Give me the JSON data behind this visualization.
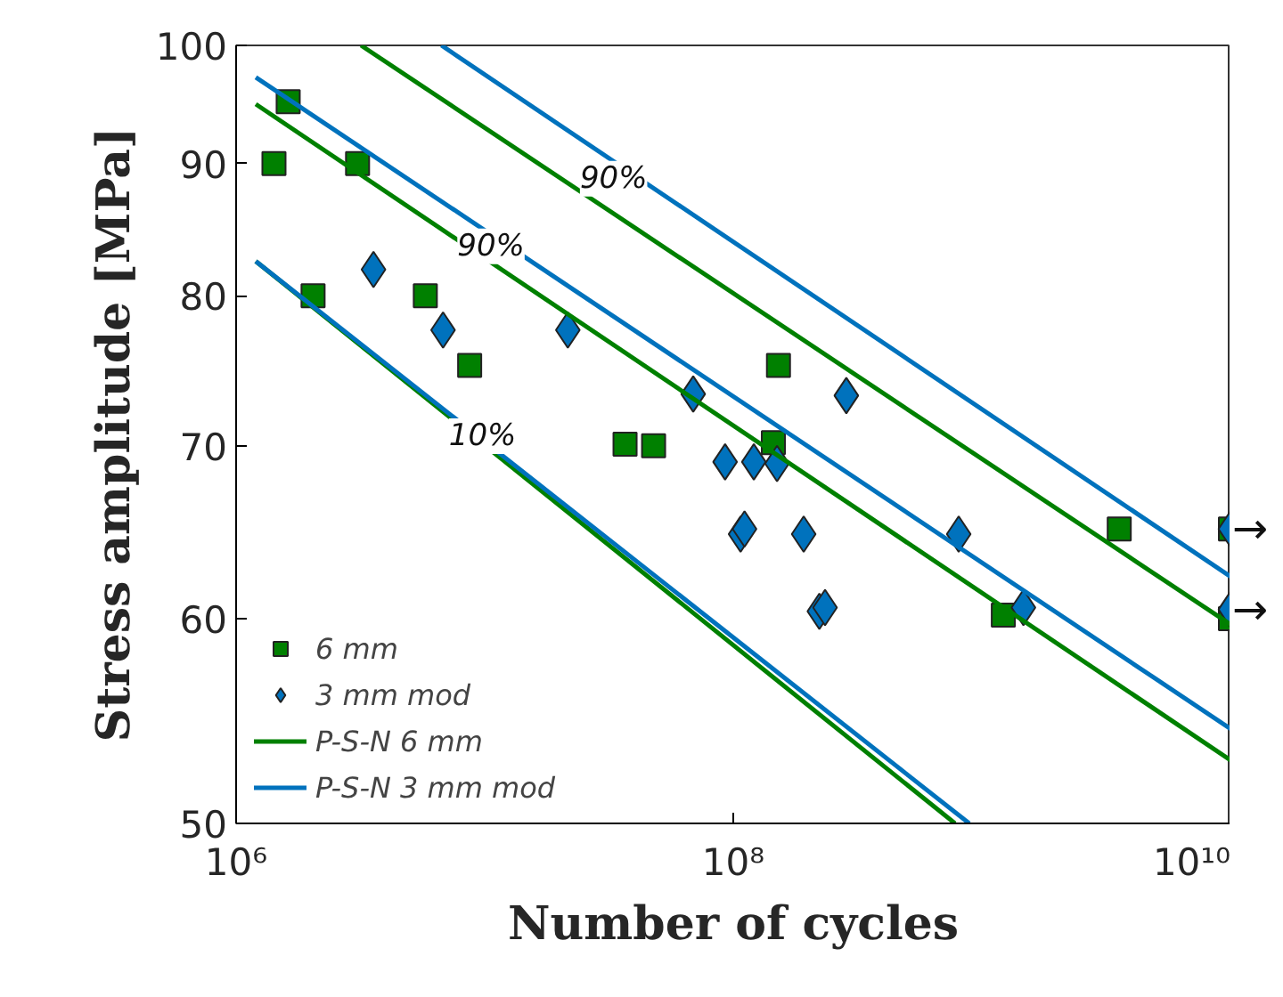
{
  "chart_data": {
    "type": "scatter",
    "xlabel": "Number of cycles",
    "ylabel": "Stress amplitude [MPa]",
    "log": "xy",
    "grid": false,
    "legend": "bottom left",
    "xlim": [
      1000000,
      10000000000
    ],
    "ylim": [
      50,
      100
    ],
    "xticks": [
      {
        "value": 1000000,
        "label": "10⁶"
      },
      {
        "value": 100000000,
        "label": "10⁸"
      },
      {
        "value": 10000000000,
        "label": "10¹⁰"
      }
    ],
    "yticks": [
      50,
      60,
      70,
      80,
      90,
      100
    ],
    "series": [
      {
        "name": "6 mm",
        "type": "scatter",
        "marker": "square",
        "color": "#008000",
        "x": [
          1420000,
          1620000,
          3080000,
          2040000,
          5770000,
          8700000,
          36700000,
          47800000,
          152000000,
          145000000,
          1220000000,
          3570000000,
          10000000000,
          10000000000
        ],
        "values": [
          90,
          95.1,
          90,
          80,
          80,
          75.2,
          70.1,
          70,
          75.2,
          70.2,
          60.2,
          65,
          60,
          65
        ]
      },
      {
        "name": "3 mm mod",
        "type": "scatter",
        "marker": "diamond",
        "color": "#0072bd",
        "x": [
          3570000,
          6800000,
          21600000,
          69000000,
          285000000,
          92700000,
          121000000,
          150000000,
          107000000,
          111000000,
          192000000,
          222000000,
          234000000,
          807000000,
          1470000000,
          10000000000,
          10000000000
        ],
        "values": [
          81.9,
          77.6,
          77.6,
          73.3,
          73.2,
          69,
          69,
          68.9,
          64.7,
          65,
          64.7,
          60.4,
          60.6,
          64.7,
          60.6,
          65,
          60.5
        ]
      },
      {
        "name": "P-S-N 6 mm",
        "type": "line",
        "line_style": "solid",
        "color": "#008000",
        "x": [
          1200000,
          10000000000
        ],
        "values": [
          94.9,
          52.9
        ]
      },
      {
        "name": "P-S-N 3 mm mod",
        "type": "line",
        "line_style": "solid",
        "color": "#0072bd",
        "x": [
          1200000,
          10000000000
        ],
        "values": [
          97.2,
          54.4
        ]
      },
      {
        "type": "line",
        "line_style": "solid",
        "color": "#008000",
        "x": [
          3180000,
          10000000000
        ],
        "values": [
          100,
          59.7
        ]
      },
      {
        "type": "line",
        "line_style": "solid",
        "color": "#0072bd",
        "x": [
          6700000,
          10000000000
        ],
        "values": [
          100,
          62.3
        ]
      },
      {
        "type": "line",
        "line_style": "solid",
        "color": "#008000",
        "x": [
          1200000,
          780000000
        ],
        "values": [
          82.5,
          50
        ]
      },
      {
        "type": "line",
        "line_style": "solid",
        "color": "#0072bd",
        "x": [
          1200000,
          890000000
        ],
        "values": [
          82.5,
          50
        ]
      }
    ],
    "annotations": [
      {
        "text": "90%",
        "x": 33000000,
        "y": 88.8
      },
      {
        "text": "90%",
        "x": 10600000,
        "y": 83.6
      },
      {
        "text": "10%",
        "x": 9800000,
        "y": 70.6
      },
      {
        "text": "→",
        "x": 10000000000,
        "y": 65
      },
      {
        "text": "→",
        "x": 10000000000,
        "y": 60.5
      }
    ]
  }
}
